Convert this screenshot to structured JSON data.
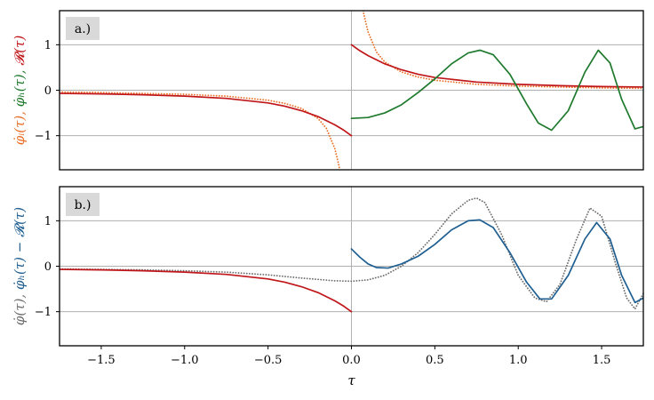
{
  "chart_data": [
    {
      "type": "line",
      "panel_label": "a.)",
      "ylabel_parts": [
        {
          "text": "φ̇ᵢ(τ), ",
          "color": "#e8712a"
        },
        {
          "text": "φ̇ₕ(τ), ",
          "color": "#1f7a2e"
        },
        {
          "text": "𝓡(τ)",
          "color": "#c0161a"
        }
      ],
      "xlim": [
        -1.75,
        1.75
      ],
      "ylim": [
        -1.75,
        1.75
      ],
      "yticks": [
        -1,
        0,
        1
      ],
      "ytick_labels": [
        "−1",
        "0",
        "1"
      ],
      "grid": "horizontal lines at y ticks, vertical line at x = 0",
      "series": [
        {
          "style": "dotted",
          "color": "#e8712a",
          "x": [
            -1.75,
            -1.5,
            -1.25,
            -1.0,
            -0.75,
            -0.5,
            -0.4,
            -0.3,
            -0.2,
            -0.15,
            -0.1,
            -0.08,
            -0.07
          ],
          "y": [
            -0.04,
            -0.05,
            -0.07,
            -0.09,
            -0.13,
            -0.22,
            -0.29,
            -0.4,
            -0.62,
            -0.84,
            -1.28,
            -1.58,
            -1.75
          ]
        },
        {
          "style": "dotted",
          "color": "#e8712a",
          "x": [
            0.07,
            0.08,
            0.1,
            0.15,
            0.2,
            0.3,
            0.4,
            0.5,
            0.75,
            1.0,
            1.25,
            1.5,
            1.75
          ],
          "y": [
            1.75,
            1.58,
            1.28,
            0.84,
            0.62,
            0.4,
            0.29,
            0.22,
            0.13,
            0.09,
            0.07,
            0.05,
            0.04
          ]
        },
        {
          "style": "solid",
          "color": "#c0161a",
          "x": [
            -1.75,
            -1.5,
            -1.25,
            -1.0,
            -0.75,
            -0.5,
            -0.4,
            -0.3,
            -0.2,
            -0.1,
            -0.05,
            0.0
          ],
          "y": [
            -0.07,
            -0.08,
            -0.1,
            -0.13,
            -0.18,
            -0.28,
            -0.35,
            -0.45,
            -0.58,
            -0.76,
            -0.87,
            -1.0
          ]
        },
        {
          "style": "solid",
          "color": "#c0161a",
          "x": [
            0.0,
            0.05,
            0.1,
            0.2,
            0.3,
            0.4,
            0.5,
            0.75,
            1.0,
            1.25,
            1.5,
            1.75
          ],
          "y": [
            1.0,
            0.87,
            0.76,
            0.58,
            0.45,
            0.35,
            0.28,
            0.18,
            0.13,
            0.1,
            0.08,
            0.07
          ]
        },
        {
          "style": "solid",
          "color": "#1f7a2e",
          "x": [
            0.0,
            0.1,
            0.2,
            0.3,
            0.4,
            0.5,
            0.6,
            0.7,
            0.77,
            0.85,
            0.95,
            1.05,
            1.12,
            1.2,
            1.3,
            1.4,
            1.48,
            1.55,
            1.62,
            1.7,
            1.75
          ],
          "y": [
            -0.62,
            -0.6,
            -0.5,
            -0.32,
            -0.05,
            0.25,
            0.58,
            0.82,
            0.88,
            0.78,
            0.35,
            -0.3,
            -0.72,
            -0.88,
            -0.45,
            0.4,
            0.88,
            0.6,
            -0.2,
            -0.85,
            -0.8
          ]
        }
      ]
    },
    {
      "type": "line",
      "panel_label": "b.)",
      "ylabel_parts": [
        {
          "text": "φ̇(τ), ",
          "color": "#6e6e6e"
        },
        {
          "text": "φ̇ₕ(τ) − 𝓡(τ)",
          "color": "#1f5f91"
        }
      ],
      "xlabel": "τ",
      "xlim": [
        -1.75,
        1.75
      ],
      "ylim": [
        -1.75,
        1.75
      ],
      "xticks": [
        -1.5,
        -1.0,
        -0.5,
        0.0,
        0.5,
        1.0,
        1.5
      ],
      "xtick_labels": [
        "−1.5",
        "−1.0",
        "−0.5",
        "0.0",
        "0.5",
        "1.0",
        "1.5"
      ],
      "yticks": [
        -1,
        0,
        1
      ],
      "ytick_labels": [
        "−1",
        "0",
        "1"
      ],
      "grid": "horizontal lines at y ticks, vertical line at x = 0",
      "series": [
        {
          "style": "dotted",
          "color": "#6e6e6e",
          "x": [
            -1.75,
            -1.5,
            -1.25,
            -1.0,
            -0.75,
            -0.5,
            -0.3,
            -0.1,
            0.0,
            0.1,
            0.2,
            0.3,
            0.4,
            0.5,
            0.6,
            0.7,
            0.75,
            0.8,
            0.9,
            1.0,
            1.1,
            1.17,
            1.25,
            1.35,
            1.43,
            1.5,
            1.58,
            1.65,
            1.7,
            1.75
          ],
          "y": [
            -0.06,
            -0.07,
            -0.08,
            -0.1,
            -0.13,
            -0.19,
            -0.26,
            -0.32,
            -0.33,
            -0.3,
            -0.2,
            0.0,
            0.3,
            0.7,
            1.15,
            1.45,
            1.5,
            1.4,
            0.7,
            -0.2,
            -0.7,
            -0.78,
            -0.4,
            0.6,
            1.28,
            1.1,
            0.1,
            -0.7,
            -0.94,
            -0.6
          ]
        },
        {
          "style": "solid",
          "color": "#c0161a",
          "x": [
            -1.75,
            -1.5,
            -1.25,
            -1.0,
            -0.75,
            -0.5,
            -0.4,
            -0.3,
            -0.2,
            -0.1,
            -0.05,
            0.0
          ],
          "y": [
            -0.07,
            -0.08,
            -0.1,
            -0.13,
            -0.18,
            -0.28,
            -0.35,
            -0.45,
            -0.58,
            -0.76,
            -0.87,
            -1.0
          ]
        },
        {
          "style": "solid",
          "color": "#1f5f91",
          "x": [
            0.0,
            0.05,
            0.1,
            0.15,
            0.22,
            0.3,
            0.4,
            0.5,
            0.6,
            0.7,
            0.77,
            0.85,
            0.95,
            1.05,
            1.13,
            1.2,
            1.3,
            1.4,
            1.47,
            1.55,
            1.62,
            1.7,
            1.75
          ],
          "y": [
            0.38,
            0.2,
            0.05,
            -0.03,
            -0.04,
            0.05,
            0.22,
            0.48,
            0.8,
            1.0,
            1.02,
            0.85,
            0.3,
            -0.35,
            -0.72,
            -0.72,
            -0.2,
            0.6,
            0.96,
            0.6,
            -0.2,
            -0.8,
            -0.7
          ]
        }
      ]
    }
  ]
}
